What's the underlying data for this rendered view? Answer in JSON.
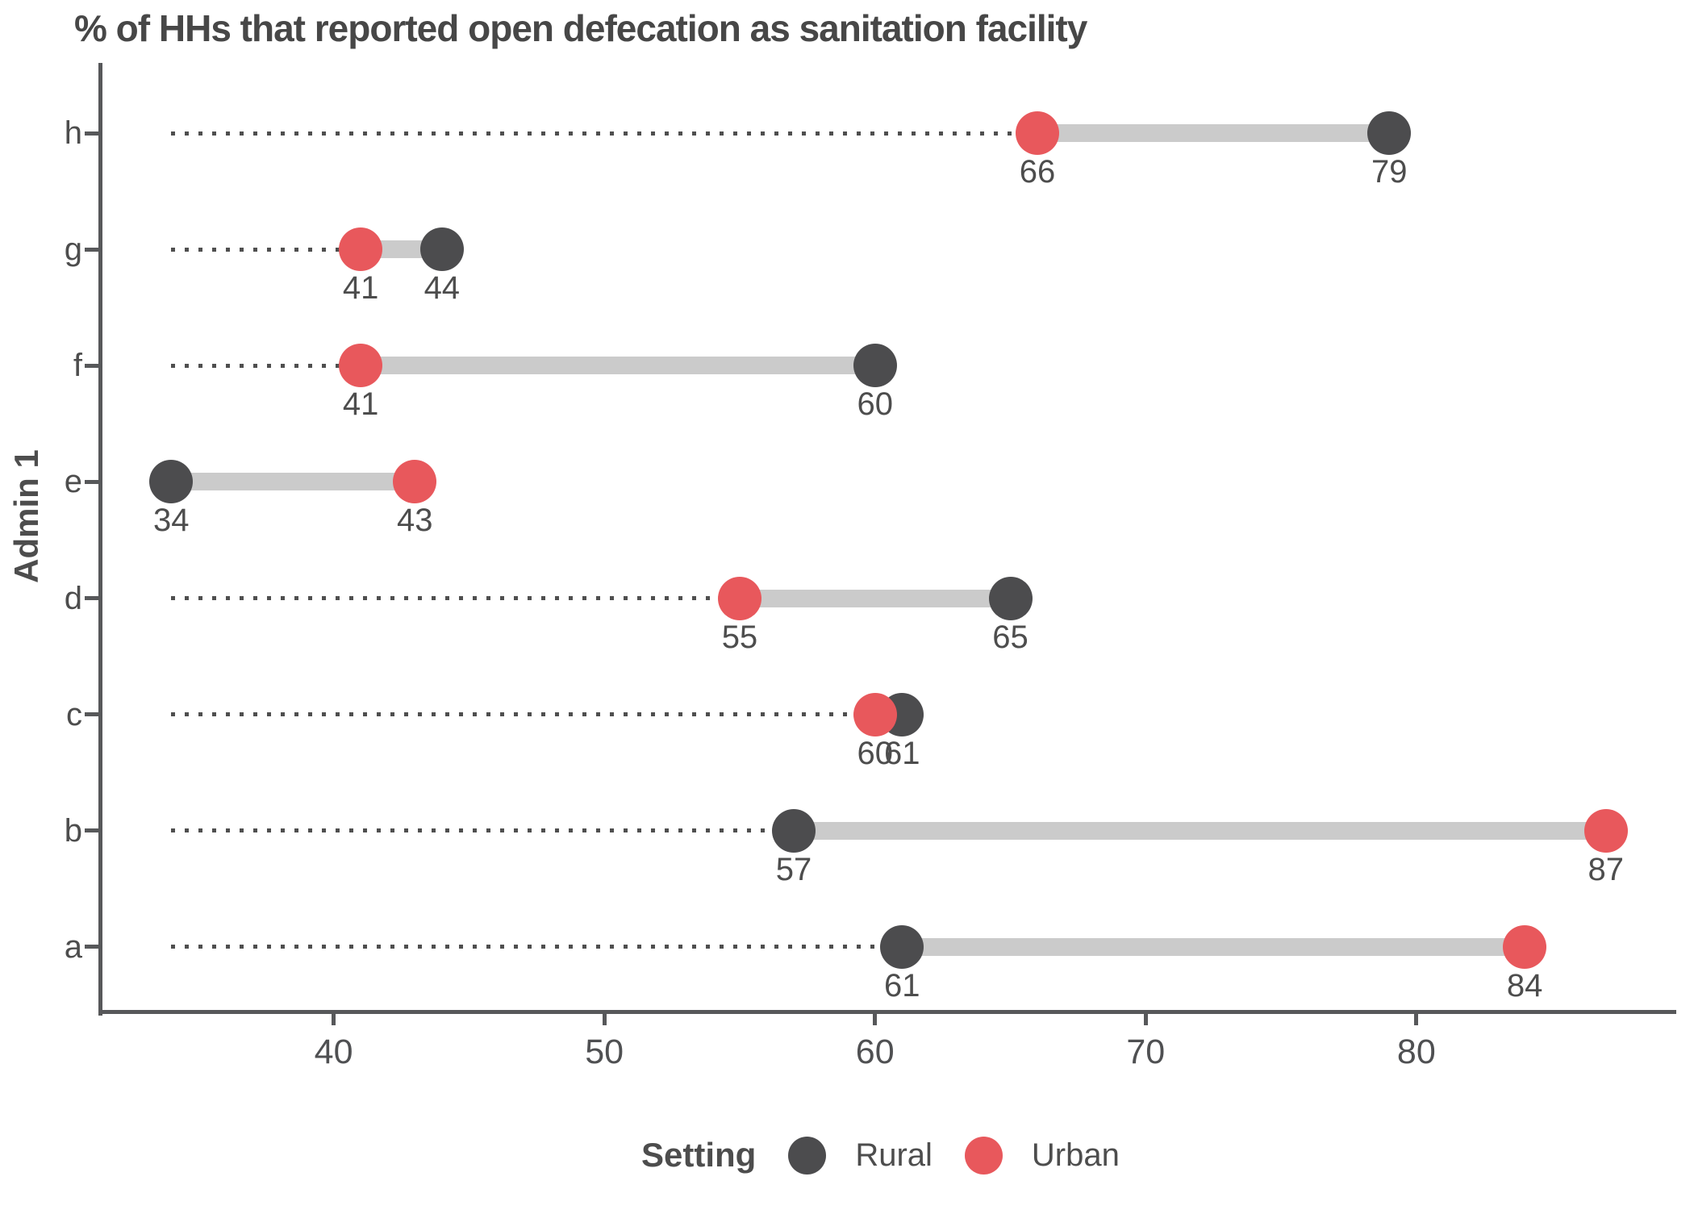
{
  "title": "% of HHs that reported open defecation as sanitation facility",
  "colors": {
    "rural": "#4c4c4e",
    "urban": "#e8585c",
    "connector": "#cbcbcb",
    "leader_dots": "#4f4f4f",
    "axis": "#57585a",
    "text": "#4d4d4d"
  },
  "chart_data": {
    "type": "dumbbell",
    "title": "% of HHs that reported open defecation as sanitation facility",
    "xlabel": "",
    "ylabel": "Admin 1",
    "x_ticks": [
      40,
      50,
      60,
      70,
      80
    ],
    "x_domain": [
      31.4,
      89.6
    ],
    "grid": "off",
    "categories": [
      "h",
      "g",
      "f",
      "e",
      "d",
      "c",
      "b",
      "a"
    ],
    "series": [
      {
        "name": "Rural",
        "color": "#4c4c4e",
        "values": [
          79,
          44,
          60,
          34,
          65,
          61,
          57,
          61
        ]
      },
      {
        "name": "Urban",
        "color": "#e8585c",
        "values": [
          66,
          41,
          41,
          43,
          55,
          60,
          87,
          84
        ]
      }
    ],
    "data_labels_shown": true,
    "legend": {
      "title": "Setting",
      "position": "bottom"
    }
  }
}
